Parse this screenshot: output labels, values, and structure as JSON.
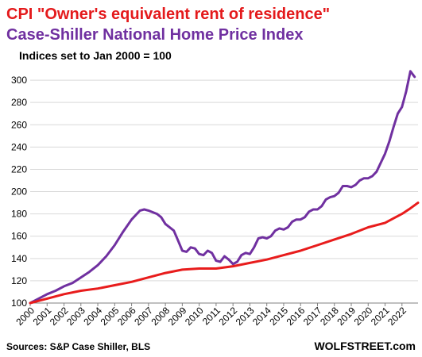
{
  "chart_data": {
    "type": "line",
    "title_lines": [
      {
        "text": "CPI \"Owner's equivalent rent of residence\"",
        "color": "#e41a1c"
      },
      {
        "text": "Case-Shiller  National  Home Price Index",
        "color": "#7030a0"
      }
    ],
    "subtitle": "Indices set to Jan 2000 = 100",
    "xlabel": "",
    "ylabel": "",
    "xlim": [
      2000,
      2022.95
    ],
    "ylim": [
      100,
      315
    ],
    "yticks": [
      100,
      120,
      140,
      160,
      180,
      200,
      220,
      240,
      260,
      280,
      300
    ],
    "xtick_years": [
      2000,
      2001,
      2002,
      2003,
      2004,
      2005,
      2006,
      2007,
      2008,
      2009,
      2010,
      2011,
      2012,
      2013,
      2014,
      2015,
      2016,
      2017,
      2018,
      2019,
      2020,
      2021,
      2022
    ],
    "grid": "horizontal",
    "series": [
      {
        "color": "#7030a0",
        "points": [
          [
            2000.0,
            100
          ],
          [
            2000.5,
            104
          ],
          [
            2001.0,
            108
          ],
          [
            2001.5,
            111
          ],
          [
            2002.0,
            115
          ],
          [
            2002.5,
            118
          ],
          [
            2003.0,
            123
          ],
          [
            2003.5,
            128
          ],
          [
            2004.0,
            134
          ],
          [
            2004.5,
            142
          ],
          [
            2005.0,
            152
          ],
          [
            2005.5,
            164
          ],
          [
            2006.0,
            175
          ],
          [
            2006.25,
            179
          ],
          [
            2006.5,
            183
          ],
          [
            2006.75,
            184
          ],
          [
            2007.0,
            183
          ],
          [
            2007.5,
            180
          ],
          [
            2007.75,
            177
          ],
          [
            2008.0,
            171
          ],
          [
            2008.5,
            165
          ],
          [
            2008.75,
            156
          ],
          [
            2009.0,
            147
          ],
          [
            2009.25,
            146
          ],
          [
            2009.5,
            150
          ],
          [
            2009.75,
            149
          ],
          [
            2010.0,
            144
          ],
          [
            2010.25,
            143
          ],
          [
            2010.5,
            147
          ],
          [
            2010.75,
            145
          ],
          [
            2011.0,
            138
          ],
          [
            2011.25,
            137
          ],
          [
            2011.5,
            142
          ],
          [
            2011.75,
            139
          ],
          [
            2012.0,
            135
          ],
          [
            2012.25,
            137
          ],
          [
            2012.5,
            143
          ],
          [
            2012.75,
            145
          ],
          [
            2013.0,
            144
          ],
          [
            2013.25,
            150
          ],
          [
            2013.5,
            158
          ],
          [
            2013.75,
            159
          ],
          [
            2014.0,
            158
          ],
          [
            2014.25,
            160
          ],
          [
            2014.5,
            165
          ],
          [
            2014.75,
            167
          ],
          [
            2015.0,
            166
          ],
          [
            2015.25,
            168
          ],
          [
            2015.5,
            173
          ],
          [
            2015.75,
            175
          ],
          [
            2016.0,
            175
          ],
          [
            2016.25,
            177
          ],
          [
            2016.5,
            182
          ],
          [
            2016.75,
            184
          ],
          [
            2017.0,
            184
          ],
          [
            2017.25,
            187
          ],
          [
            2017.5,
            193
          ],
          [
            2017.75,
            195
          ],
          [
            2018.0,
            196
          ],
          [
            2018.25,
            199
          ],
          [
            2018.5,
            205
          ],
          [
            2018.75,
            205
          ],
          [
            2019.0,
            204
          ],
          [
            2019.25,
            206
          ],
          [
            2019.5,
            210
          ],
          [
            2019.75,
            212
          ],
          [
            2020.0,
            212
          ],
          [
            2020.25,
            214
          ],
          [
            2020.5,
            218
          ],
          [
            2020.75,
            226
          ],
          [
            2021.0,
            234
          ],
          [
            2021.25,
            245
          ],
          [
            2021.5,
            258
          ],
          [
            2021.75,
            270
          ],
          [
            2022.0,
            276
          ],
          [
            2022.25,
            290
          ],
          [
            2022.5,
            308
          ],
          [
            2022.75,
            303
          ]
        ]
      },
      {
        "color": "#e81c1c",
        "points": [
          [
            2000.0,
            100
          ],
          [
            2001.0,
            104
          ],
          [
            2002.0,
            108
          ],
          [
            2003.0,
            111
          ],
          [
            2004.0,
            113
          ],
          [
            2005.0,
            116
          ],
          [
            2006.0,
            119
          ],
          [
            2007.0,
            123
          ],
          [
            2008.0,
            127
          ],
          [
            2009.0,
            130
          ],
          [
            2010.0,
            131
          ],
          [
            2011.0,
            131
          ],
          [
            2012.0,
            133
          ],
          [
            2013.0,
            136
          ],
          [
            2014.0,
            139
          ],
          [
            2015.0,
            143
          ],
          [
            2016.0,
            147
          ],
          [
            2017.0,
            152
          ],
          [
            2018.0,
            157
          ],
          [
            2019.0,
            162
          ],
          [
            2020.0,
            168
          ],
          [
            2021.0,
            172
          ],
          [
            2021.5,
            176
          ],
          [
            2022.0,
            180
          ],
          [
            2022.5,
            185
          ],
          [
            2022.95,
            190
          ]
        ]
      }
    ],
    "source": "Sources: S&P Case Shiller, BLS",
    "brand": "WOLFSTREET.com"
  }
}
